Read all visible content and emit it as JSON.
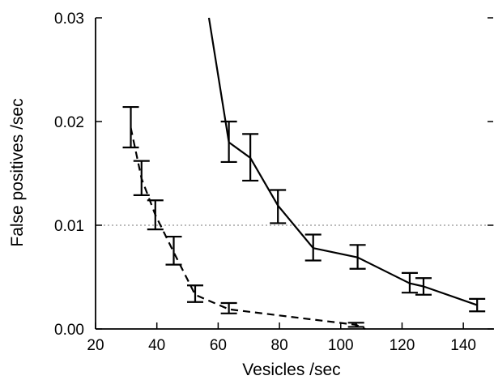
{
  "chart_data": {
    "type": "line",
    "title": "",
    "xlabel": "Vesicles /sec",
    "ylabel": "False positives /sec",
    "xlim": [
      20,
      150
    ],
    "ylim": [
      0,
      0.03
    ],
    "x_ticks": [
      20,
      40,
      60,
      80,
      100,
      120,
      140
    ],
    "x_tick_labels": [
      "20",
      "40",
      "60",
      "80",
      "100",
      "120",
      "140"
    ],
    "y_ticks": [
      0,
      0.01,
      0.02,
      0.03
    ],
    "y_tick_labels": [
      "0.00",
      "0.01",
      "0.02",
      "0.03"
    ],
    "reference_line": {
      "y": 0.01,
      "style": "dotted"
    },
    "grid": false,
    "legend": "none",
    "series": [
      {
        "line_style": "dashed",
        "color": "#000000",
        "points": [
          {
            "x": 31.5,
            "y": 0.0194,
            "lo": 0.0175,
            "hi": 0.0214
          },
          {
            "x": 35.0,
            "y": 0.0145,
            "lo": 0.0129,
            "hi": 0.0162
          },
          {
            "x": 39.5,
            "y": 0.011,
            "lo": 0.0096,
            "hi": 0.0124
          },
          {
            "x": 45.5,
            "y": 0.0074,
            "lo": 0.0062,
            "hi": 0.0089
          },
          {
            "x": 52.5,
            "y": 0.0033,
            "lo": 0.0026,
            "hi": 0.0042
          },
          {
            "x": 63.5,
            "y": 0.0019,
            "lo": 0.0015,
            "hi": 0.0025
          },
          {
            "x": 105.0,
            "y": 0.0004,
            "lo": 0.0002,
            "hi": 0.0006
          }
        ],
        "curve_extension": {
          "x": 108.0,
          "y": 0.0
        }
      },
      {
        "line_style": "solid",
        "color": "#000000",
        "curve_start": {
          "x": 57.0,
          "y": 0.03
        },
        "points": [
          {
            "x": 63.5,
            "y": 0.018,
            "lo": 0.0161,
            "hi": 0.02
          },
          {
            "x": 70.5,
            "y": 0.0165,
            "lo": 0.0143,
            "hi": 0.0188
          },
          {
            "x": 79.5,
            "y": 0.0119,
            "lo": 0.0102,
            "hi": 0.0134
          },
          {
            "x": 91.0,
            "y": 0.0078,
            "lo": 0.0066,
            "hi": 0.0091
          },
          {
            "x": 105.5,
            "y": 0.0069,
            "lo": 0.0058,
            "hi": 0.0081
          },
          {
            "x": 122.5,
            "y": 0.0044,
            "lo": 0.0035,
            "hi": 0.0054
          },
          {
            "x": 127.0,
            "y": 0.0041,
            "lo": 0.0033,
            "hi": 0.0049
          },
          {
            "x": 144.5,
            "y": 0.0023,
            "lo": 0.0017,
            "hi": 0.0029
          }
        ]
      }
    ]
  }
}
